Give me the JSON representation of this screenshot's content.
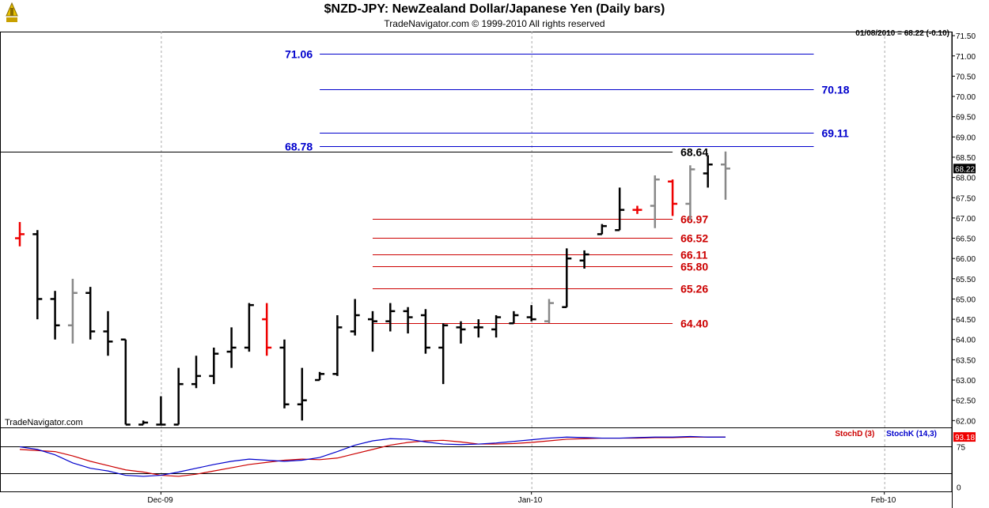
{
  "header": {
    "title": "$NZD-JPY:  NewZealand Dollar/Japanese Yen  (Daily bars)",
    "subtitle": "TradeNavigator.com © 1999-2010 All rights reserved",
    "readout": "01/08/2010 = 68.22 (-0.10)",
    "watermark": "TradeNavigator.com"
  },
  "chart_data": [
    {
      "type": "ohlc",
      "y_ticks": [
        "71.50",
        "71.00",
        "70.50",
        "70.00",
        "69.50",
        "69.00",
        "68.50",
        "68.00",
        "67.50",
        "67.00",
        "66.50",
        "66.00",
        "65.50",
        "65.00",
        "64.50",
        "64.00",
        "63.50",
        "63.00",
        "62.50",
        "62.00"
      ],
      "ylim": [
        61.85,
        71.6
      ],
      "x_ticks": [
        "Dec-09",
        "Jan-10",
        "Feb-10"
      ],
      "x_tick_bar_index": [
        8,
        29,
        49
      ],
      "last_price_label": "68.22",
      "bars": [
        {
          "o": 66.5,
          "h": 66.9,
          "l": 66.3,
          "c": 66.6,
          "col": "red"
        },
        {
          "o": 66.6,
          "h": 66.7,
          "l": 64.5,
          "c": 65.0,
          "col": "black"
        },
        {
          "o": 65.0,
          "h": 65.2,
          "l": 64.0,
          "c": 64.35,
          "col": "black"
        },
        {
          "o": 64.35,
          "h": 65.5,
          "l": 63.9,
          "c": 65.15,
          "col": "gray"
        },
        {
          "o": 65.15,
          "h": 65.3,
          "l": 64.0,
          "c": 64.2,
          "col": "black"
        },
        {
          "o": 64.2,
          "h": 64.7,
          "l": 63.6,
          "c": 63.95,
          "col": "black"
        },
        {
          "o": 64.0,
          "h": 64.0,
          "l": 61.9,
          "c": 61.9,
          "col": "black"
        },
        {
          "o": 61.9,
          "h": 62.0,
          "l": 61.9,
          "c": 61.95,
          "col": "black"
        },
        {
          "o": 61.9,
          "h": 62.6,
          "l": 61.9,
          "c": 61.9,
          "col": "black"
        },
        {
          "o": 61.9,
          "h": 63.3,
          "l": 61.9,
          "c": 62.9,
          "col": "black"
        },
        {
          "o": 62.9,
          "h": 63.6,
          "l": 62.8,
          "c": 63.1,
          "col": "black"
        },
        {
          "o": 63.1,
          "h": 63.8,
          "l": 62.9,
          "c": 63.65,
          "col": "black"
        },
        {
          "o": 63.7,
          "h": 64.3,
          "l": 63.3,
          "c": 63.8,
          "col": "black"
        },
        {
          "o": 63.8,
          "h": 64.9,
          "l": 63.7,
          "c": 64.85,
          "col": "black"
        },
        {
          "o": 64.5,
          "h": 64.9,
          "l": 63.6,
          "c": 63.8,
          "col": "red"
        },
        {
          "o": 63.8,
          "h": 64.0,
          "l": 62.3,
          "c": 62.4,
          "col": "black"
        },
        {
          "o": 62.4,
          "h": 63.3,
          "l": 62.0,
          "c": 62.5,
          "col": "black"
        },
        {
          "o": 63.0,
          "h": 63.2,
          "l": 63.0,
          "c": 63.15,
          "col": "black"
        },
        {
          "o": 63.15,
          "h": 64.6,
          "l": 63.1,
          "c": 64.3,
          "col": "black"
        },
        {
          "o": 64.2,
          "h": 65.0,
          "l": 64.1,
          "c": 64.6,
          "col": "black"
        },
        {
          "o": 64.5,
          "h": 64.7,
          "l": 63.7,
          "c": 64.45,
          "col": "black"
        },
        {
          "o": 64.45,
          "h": 64.9,
          "l": 64.2,
          "c": 64.7,
          "col": "black"
        },
        {
          "o": 64.7,
          "h": 64.8,
          "l": 64.15,
          "c": 64.55,
          "col": "black"
        },
        {
          "o": 64.6,
          "h": 64.75,
          "l": 63.65,
          "c": 63.8,
          "col": "black"
        },
        {
          "o": 63.8,
          "h": 64.4,
          "l": 62.9,
          "c": 64.35,
          "col": "black"
        },
        {
          "o": 64.3,
          "h": 64.45,
          "l": 63.9,
          "c": 64.25,
          "col": "black"
        },
        {
          "o": 64.3,
          "h": 64.5,
          "l": 64.05,
          "c": 64.3,
          "col": "black"
        },
        {
          "o": 64.25,
          "h": 64.6,
          "l": 64.05,
          "c": 64.55,
          "col": "black"
        },
        {
          "o": 64.4,
          "h": 64.7,
          "l": 64.4,
          "c": 64.6,
          "col": "black"
        },
        {
          "o": 64.55,
          "h": 64.85,
          "l": 64.45,
          "c": 64.5,
          "col": "black"
        },
        {
          "o": 64.45,
          "h": 65.0,
          "l": 64.4,
          "c": 64.9,
          "col": "gray"
        },
        {
          "o": 64.8,
          "h": 66.25,
          "l": 64.8,
          "c": 66.0,
          "col": "black"
        },
        {
          "o": 65.95,
          "h": 66.2,
          "l": 65.75,
          "c": 66.1,
          "col": "black"
        },
        {
          "o": 66.6,
          "h": 66.85,
          "l": 66.6,
          "c": 66.8,
          "col": "black"
        },
        {
          "o": 66.7,
          "h": 67.75,
          "l": 66.7,
          "c": 67.2,
          "col": "black"
        },
        {
          "o": 67.2,
          "h": 67.3,
          "l": 67.1,
          "c": 67.2,
          "col": "red"
        },
        {
          "o": 67.3,
          "h": 68.05,
          "l": 66.75,
          "c": 67.95,
          "col": "gray"
        },
        {
          "o": 67.9,
          "h": 67.95,
          "l": 67.05,
          "c": 67.35,
          "col": "red"
        },
        {
          "o": 67.35,
          "h": 68.3,
          "l": 66.95,
          "c": 68.2,
          "col": "gray"
        },
        {
          "o": 68.1,
          "h": 68.55,
          "l": 67.75,
          "c": 68.32,
          "col": "black"
        },
        {
          "o": 68.32,
          "h": 68.64,
          "l": 67.45,
          "c": 68.22,
          "col": "gray"
        }
      ],
      "levels": [
        {
          "value": 71.06,
          "label": "71.06",
          "color": "#0000cc",
          "label_side": "left",
          "start_bar": 17,
          "end_bar": 45
        },
        {
          "value": 70.18,
          "label": "70.18",
          "color": "#0000cc",
          "label_side": "right",
          "start_bar": 17,
          "end_bar": 45
        },
        {
          "value": 69.11,
          "label": "69.11",
          "color": "#0000cc",
          "label_side": "right",
          "start_bar": 17,
          "end_bar": 45
        },
        {
          "value": 68.78,
          "label": "68.78",
          "color": "#0000cc",
          "label_side": "left",
          "start_bar": 17,
          "end_bar": 45
        },
        {
          "value": 68.64,
          "label": "68.64",
          "color": "#000000",
          "label_side": "right",
          "start_bar": -1,
          "end_bar": 37
        },
        {
          "value": 66.97,
          "label": "66.97",
          "color": "#cc0000",
          "label_side": "right",
          "start_bar": 20,
          "end_bar": 37
        },
        {
          "value": 66.52,
          "label": "66.52",
          "color": "#cc0000",
          "label_side": "right",
          "start_bar": 20,
          "end_bar": 37
        },
        {
          "value": 66.11,
          "label": "66.11",
          "color": "#cc0000",
          "label_side": "right",
          "start_bar": 20,
          "end_bar": 37
        },
        {
          "value": 65.8,
          "label": "65.80",
          "color": "#cc0000",
          "label_side": "right",
          "start_bar": 20,
          "end_bar": 37
        },
        {
          "value": 65.26,
          "label": "65.26",
          "color": "#cc0000",
          "label_side": "right",
          "start_bar": 20,
          "end_bar": 37
        },
        {
          "value": 64.4,
          "label": "64.40",
          "color": "#cc0000",
          "label_side": "right",
          "start_bar": 20,
          "end_bar": 37
        }
      ]
    },
    {
      "type": "line",
      "legend": [
        "StochD (3)",
        "StochK (14,3)"
      ],
      "y_ticks": [
        "75",
        "0"
      ],
      "ylim": [
        -8,
        108
      ],
      "reference_lines": [
        75,
        25
      ],
      "last_value_label": "93.18",
      "series": [
        {
          "name": "StochD (3)",
          "color": "#cc0000",
          "values": [
            70,
            68,
            66,
            58,
            48,
            40,
            32,
            28,
            22,
            20,
            24,
            30,
            36,
            42,
            46,
            50,
            52,
            51,
            54,
            62,
            70,
            78,
            83,
            86,
            87,
            84,
            80,
            80,
            81,
            83,
            86,
            89,
            90,
            91,
            91,
            91,
            92,
            92,
            93,
            93,
            93.18
          ]
        },
        {
          "name": "StochK (14,3)",
          "color": "#0000cc",
          "values": [
            75,
            70,
            60,
            45,
            35,
            30,
            22,
            20,
            22,
            28,
            35,
            42,
            48,
            52,
            50,
            48,
            50,
            55,
            66,
            78,
            86,
            90,
            89,
            84,
            80,
            79,
            80,
            82,
            85,
            88,
            91,
            93,
            92,
            91,
            91,
            92,
            93,
            93,
            94,
            93,
            93
          ]
        }
      ]
    }
  ]
}
